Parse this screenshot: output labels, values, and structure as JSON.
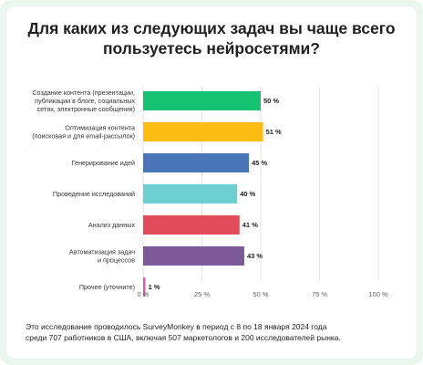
{
  "title": {
    "line1": "Для каких из следующих задач вы чаще всего",
    "line2": "пользуетесь нейросетями?"
  },
  "chart_data": {
    "type": "bar",
    "orientation": "horizontal",
    "categories": [
      [
        "Создание контента (презентации,",
        "публикации в блоге, социальных",
        "сетях, электронные сообщения)"
      ],
      [
        "Оптимизация контента",
        "(поисковая и для email-рассылок)"
      ],
      [
        "Генерирование идей"
      ],
      [
        "Проведение исследований"
      ],
      [
        "Анализ данных"
      ],
      [
        "Автоматизация задач",
        "и процессов"
      ],
      [
        "Прочее (уточните)"
      ]
    ],
    "values": [
      50,
      51,
      45,
      40,
      41,
      43,
      1
    ],
    "value_labels": [
      "50 %",
      "51 %",
      "45 %",
      "40 %",
      "41 %",
      "43 %",
      "1 %"
    ],
    "colors": [
      "#16c172",
      "#fcbc12",
      "#4a75b9",
      "#6ecfd0",
      "#e24b5a",
      "#7c5998",
      "#dd5dad"
    ],
    "xlim": [
      0,
      100
    ],
    "xticks": [
      0,
      25,
      50,
      75,
      100
    ],
    "xtick_labels": [
      "0 %",
      "25 %",
      "50 %",
      "75 %",
      "100 %"
    ],
    "grid": true
  },
  "footnote": {
    "line1": "Это исследование проводилось SurveyMonkey в период с 8 по 18 января 2024 года",
    "line2": "среди 707 работников в США, включая 507 маркетологов и 200 исследователей рынка."
  }
}
